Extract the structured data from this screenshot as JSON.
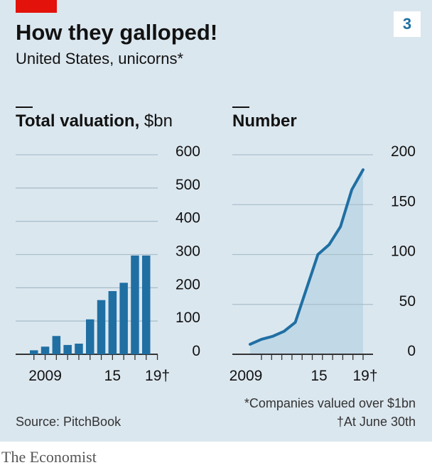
{
  "header": {
    "title": "How they galloped!",
    "subtitle": "United States, unicorns*",
    "panel_number": "3"
  },
  "colors": {
    "bar": "#1f6fa3",
    "line": "#1f6fa3",
    "area": "#b8d3e3",
    "grid": "#a9bfcc",
    "accent": "#e3120b",
    "background": "#dbe7ef"
  },
  "chart_data": [
    {
      "type": "bar",
      "title": "Total valuation,",
      "unit": "$bn",
      "x": [
        2008,
        2009,
        2010,
        2011,
        2012,
        2013,
        2014,
        2015,
        2016,
        2017,
        2018,
        2019
      ],
      "values": [
        12,
        23,
        55,
        28,
        32,
        105,
        163,
        190,
        215,
        297,
        297,
        0
      ],
      "ylim": [
        0,
        600
      ],
      "yticks": [
        "0",
        "100",
        "200",
        "300",
        "400",
        "500",
        "600"
      ],
      "xticks": [
        "2009",
        "15",
        "19†"
      ],
      "grid": true
    },
    {
      "type": "area",
      "title": "Number",
      "x": [
        2008,
        2009,
        2010,
        2011,
        2012,
        2013,
        2014,
        2015,
        2016,
        2017,
        2018,
        2019
      ],
      "values": [
        10,
        15,
        18,
        23,
        32,
        66,
        100,
        110,
        128,
        165,
        185,
        0
      ],
      "ylim": [
        0,
        200
      ],
      "yticks": [
        "0",
        "50",
        "100",
        "150",
        "200"
      ],
      "xticks": [
        "2009",
        "15",
        "19†"
      ],
      "grid": true
    }
  ],
  "footer": {
    "source": "Source: PitchBook",
    "note_companies": "*Companies valued over $1bn",
    "note_date": "†At June 30th",
    "brand": "The Economist"
  }
}
